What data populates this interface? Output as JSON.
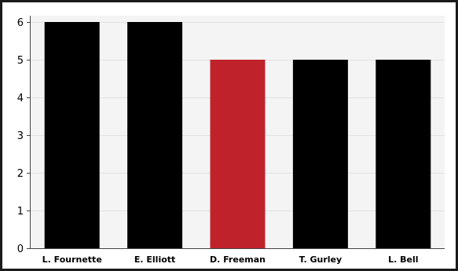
{
  "chart_data": {
    "type": "bar",
    "categories": [
      "L. Fournette",
      "E. Elliott",
      "D. Freeman",
      "T. Gurley",
      "L. Bell"
    ],
    "values": [
      6,
      6,
      5,
      5,
      5
    ],
    "colors": [
      "#000000",
      "#000000",
      "#c0222b",
      "#000000",
      "#000000"
    ],
    "title": "",
    "xlabel": "",
    "ylabel": "",
    "ylim": [
      0,
      6
    ],
    "yticks": [
      0,
      1,
      2,
      3,
      4,
      5,
      6
    ],
    "grid": true,
    "legend": "none"
  }
}
